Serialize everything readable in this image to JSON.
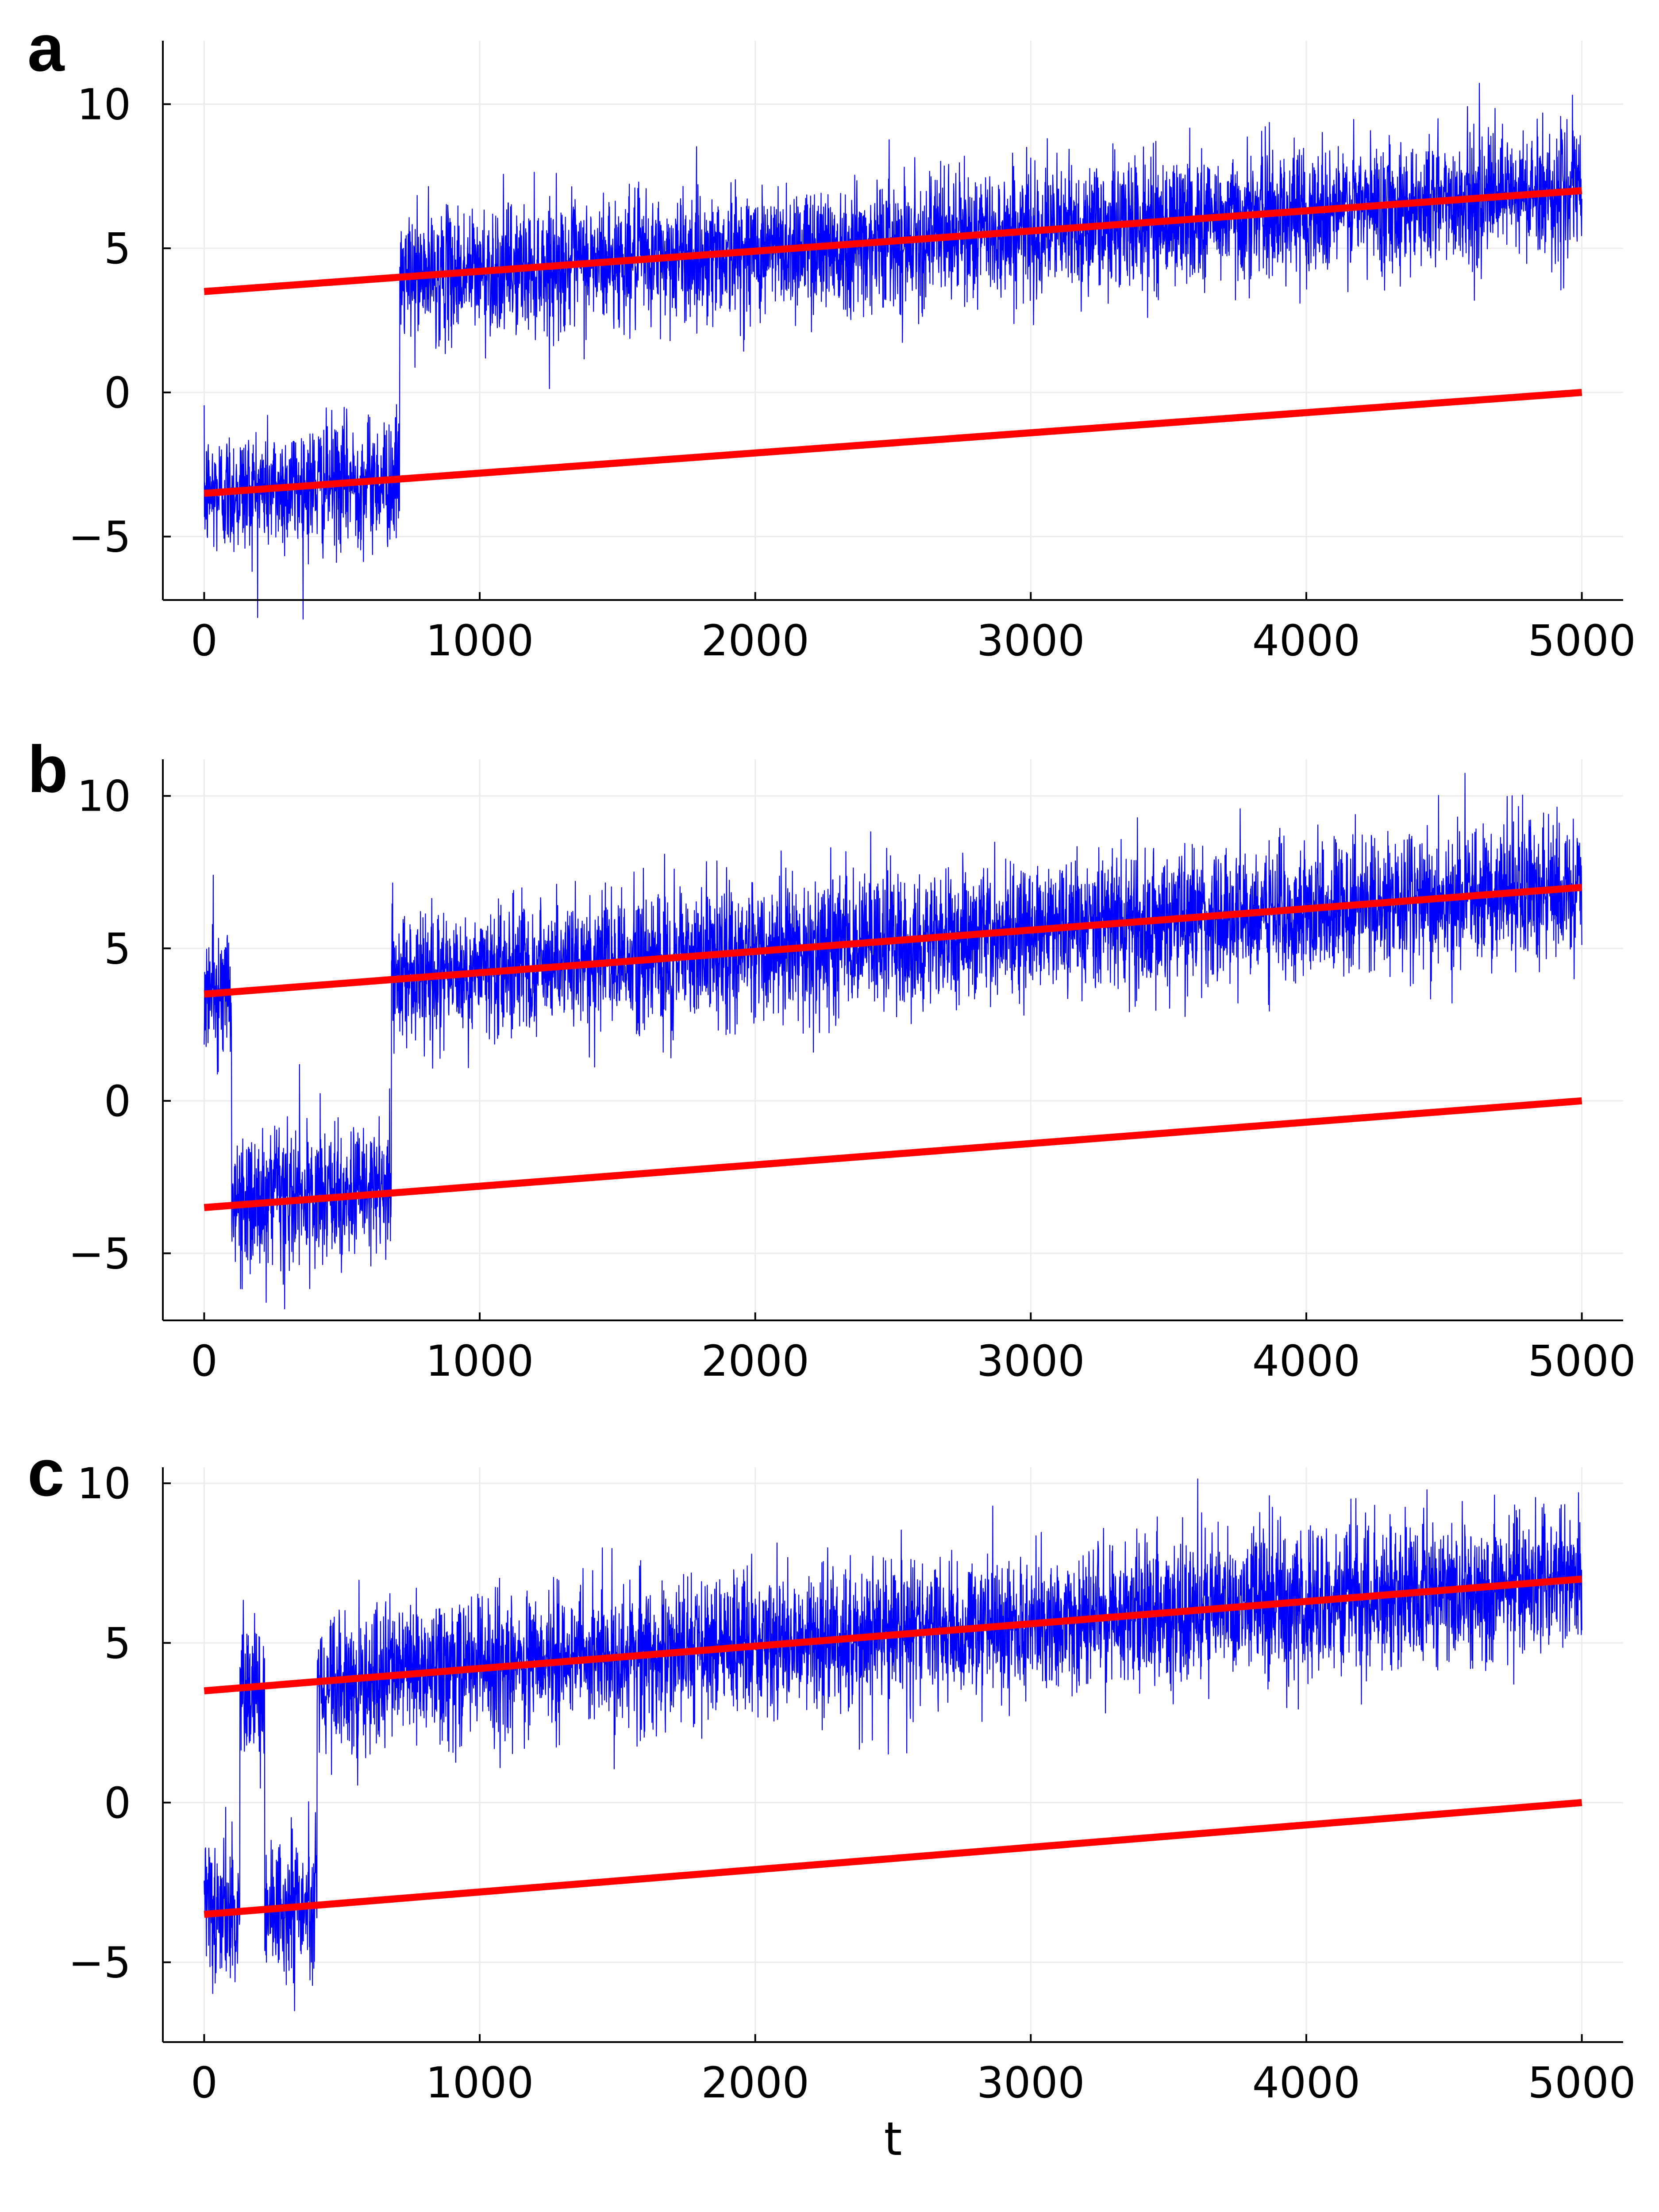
{
  "colors": {
    "signal": "#0000ff",
    "threshold": "#ff0000",
    "grid": "#ececec",
    "axis": "#000000"
  },
  "chart_data": [
    {
      "panel": "a",
      "type": "line",
      "xlabel": "",
      "ylabel": "",
      "xlim": [
        -150,
        5150
      ],
      "ylim": [
        -7.2,
        12.2
      ],
      "xticks": [
        0,
        1000,
        2000,
        3000,
        4000,
        5000
      ],
      "xtick_labels": [
        "0",
        "1000",
        "2000",
        "3000",
        "4000",
        "5000"
      ],
      "yticks": [
        -5,
        0,
        5,
        10
      ],
      "ytick_labels": [
        "−5",
        "0",
        "5",
        "10"
      ],
      "grid": true,
      "legend": "none",
      "signal_profile": {
        "noise_sd": 1.1,
        "segments": [
          {
            "x_start": 0,
            "x_end": 710,
            "level": "lower"
          },
          {
            "x_start": 710,
            "x_end": 5000,
            "level": "upper"
          }
        ]
      },
      "threshold_lines": [
        {
          "x": [
            0,
            5000
          ],
          "y": [
            3.5,
            7.0
          ]
        },
        {
          "x": [
            0,
            5000
          ],
          "y": [
            -3.5,
            0.0
          ]
        }
      ]
    },
    {
      "panel": "b",
      "type": "line",
      "xlabel": "",
      "ylabel": "",
      "xlim": [
        -150,
        5150
      ],
      "ylim": [
        -7.2,
        11.2
      ],
      "xticks": [
        0,
        1000,
        2000,
        3000,
        4000,
        5000
      ],
      "xtick_labels": [
        "0",
        "1000",
        "2000",
        "3000",
        "4000",
        "5000"
      ],
      "yticks": [
        -5,
        0,
        5,
        10
      ],
      "ytick_labels": [
        "−5",
        "0",
        "5",
        "10"
      ],
      "grid": true,
      "legend": "none",
      "signal_profile": {
        "noise_sd": 1.1,
        "segments": [
          {
            "x_start": 0,
            "x_end": 100,
            "level": "upper"
          },
          {
            "x_start": 100,
            "x_end": 680,
            "level": "lower"
          },
          {
            "x_start": 680,
            "x_end": 5000,
            "level": "upper"
          }
        ]
      },
      "threshold_lines": [
        {
          "x": [
            0,
            5000
          ],
          "y": [
            3.5,
            7.0
          ]
        },
        {
          "x": [
            0,
            5000
          ],
          "y": [
            -3.5,
            0.0
          ]
        }
      ]
    },
    {
      "panel": "c",
      "type": "line",
      "xlabel": "t",
      "ylabel": "",
      "xlim": [
        -150,
        5150
      ],
      "ylim": [
        -7.5,
        10.5
      ],
      "xticks": [
        0,
        1000,
        2000,
        3000,
        4000,
        5000
      ],
      "xtick_labels": [
        "0",
        "1000",
        "2000",
        "3000",
        "4000",
        "5000"
      ],
      "yticks": [
        -5,
        0,
        5,
        10
      ],
      "ytick_labels": [
        "−5",
        "0",
        "5",
        "10"
      ],
      "grid": true,
      "legend": "none",
      "signal_profile": {
        "noise_sd": 1.1,
        "segments": [
          {
            "x_start": 0,
            "x_end": 130,
            "level": "lower"
          },
          {
            "x_start": 130,
            "x_end": 220,
            "level": "upper"
          },
          {
            "x_start": 220,
            "x_end": 410,
            "level": "lower"
          },
          {
            "x_start": 410,
            "x_end": 5000,
            "level": "upper"
          }
        ]
      },
      "threshold_lines": [
        {
          "x": [
            0,
            5000
          ],
          "y": [
            3.5,
            7.0
          ]
        },
        {
          "x": [
            0,
            5000
          ],
          "y": [
            -3.5,
            0.0
          ]
        }
      ]
    }
  ]
}
